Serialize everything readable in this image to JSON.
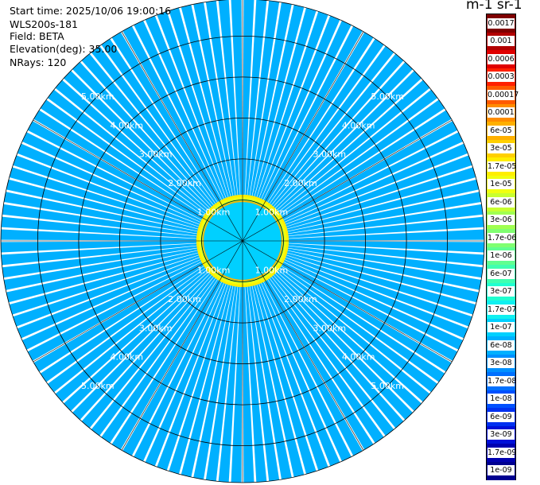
{
  "header": {
    "start_time": "Start time: 2025/10/06 19:00:16",
    "instrument": "WLS200s-181",
    "field": "Field: BETA",
    "elevation": "Elevation(deg): 35.00",
    "nrays": "NRays: 120"
  },
  "colorbar": {
    "unit_label": "m-1 sr-1",
    "tick_labels": [
      "0.0017",
      "0.001",
      "0.0006",
      "0.0003",
      "0.00017",
      "0.0001",
      "6e-05",
      "3e-05",
      "1.7e-05",
      "1e-05",
      "6e-06",
      "3e-06",
      "1.7e-06",
      "1e-06",
      "6e-07",
      "3e-07",
      "1.7e-07",
      "1e-07",
      "6e-08",
      "3e-08",
      "1.7e-08",
      "1e-08",
      "6e-09",
      "3e-09",
      "1.7e-09",
      "1e-09"
    ],
    "colors": [
      "#7f0000",
      "#b20000",
      "#e00000",
      "#ff2000",
      "#ff5a00",
      "#ff8c00",
      "#ffb000",
      "#ffd000",
      "#ffee00",
      "#f0ff10",
      "#c8ff30",
      "#a0ff50",
      "#80ff70",
      "#60ff90",
      "#40ffb0",
      "#20ffd0",
      "#10f0f0",
      "#00d0ff",
      "#00b0ff",
      "#0090ff",
      "#0070ff",
      "#0050ff",
      "#0030f0",
      "#0010d8",
      "#0000b0",
      "#000090"
    ]
  },
  "chart_data": {
    "type": "heatmap",
    "projection": "polar PPI scan",
    "rays": 120,
    "range_rings": [
      {
        "range_km": 1.0,
        "label": "1.00km"
      },
      {
        "range_km": 2.0,
        "label": "2.00km"
      },
      {
        "range_km": 3.0,
        "label": "3.00km"
      },
      {
        "range_km": 4.0,
        "label": "4.00km"
      },
      {
        "range_km": 5.0,
        "label": "5.00km"
      }
    ],
    "max_range_km": 5.9,
    "spokes_deg": [
      0,
      30,
      60,
      90,
      120,
      150,
      180,
      210,
      240,
      270,
      300,
      330
    ],
    "near_field": {
      "inner_km": 0.0,
      "outer_km": 1.0,
      "value": "1e-07"
    },
    "near_ring": {
      "range_km": 1.05,
      "values": [
        "1.7e-05",
        "1e-05",
        "3e-06",
        "6e-05"
      ]
    },
    "background_value": "6e-08",
    "colorscale": "jet (log)"
  }
}
